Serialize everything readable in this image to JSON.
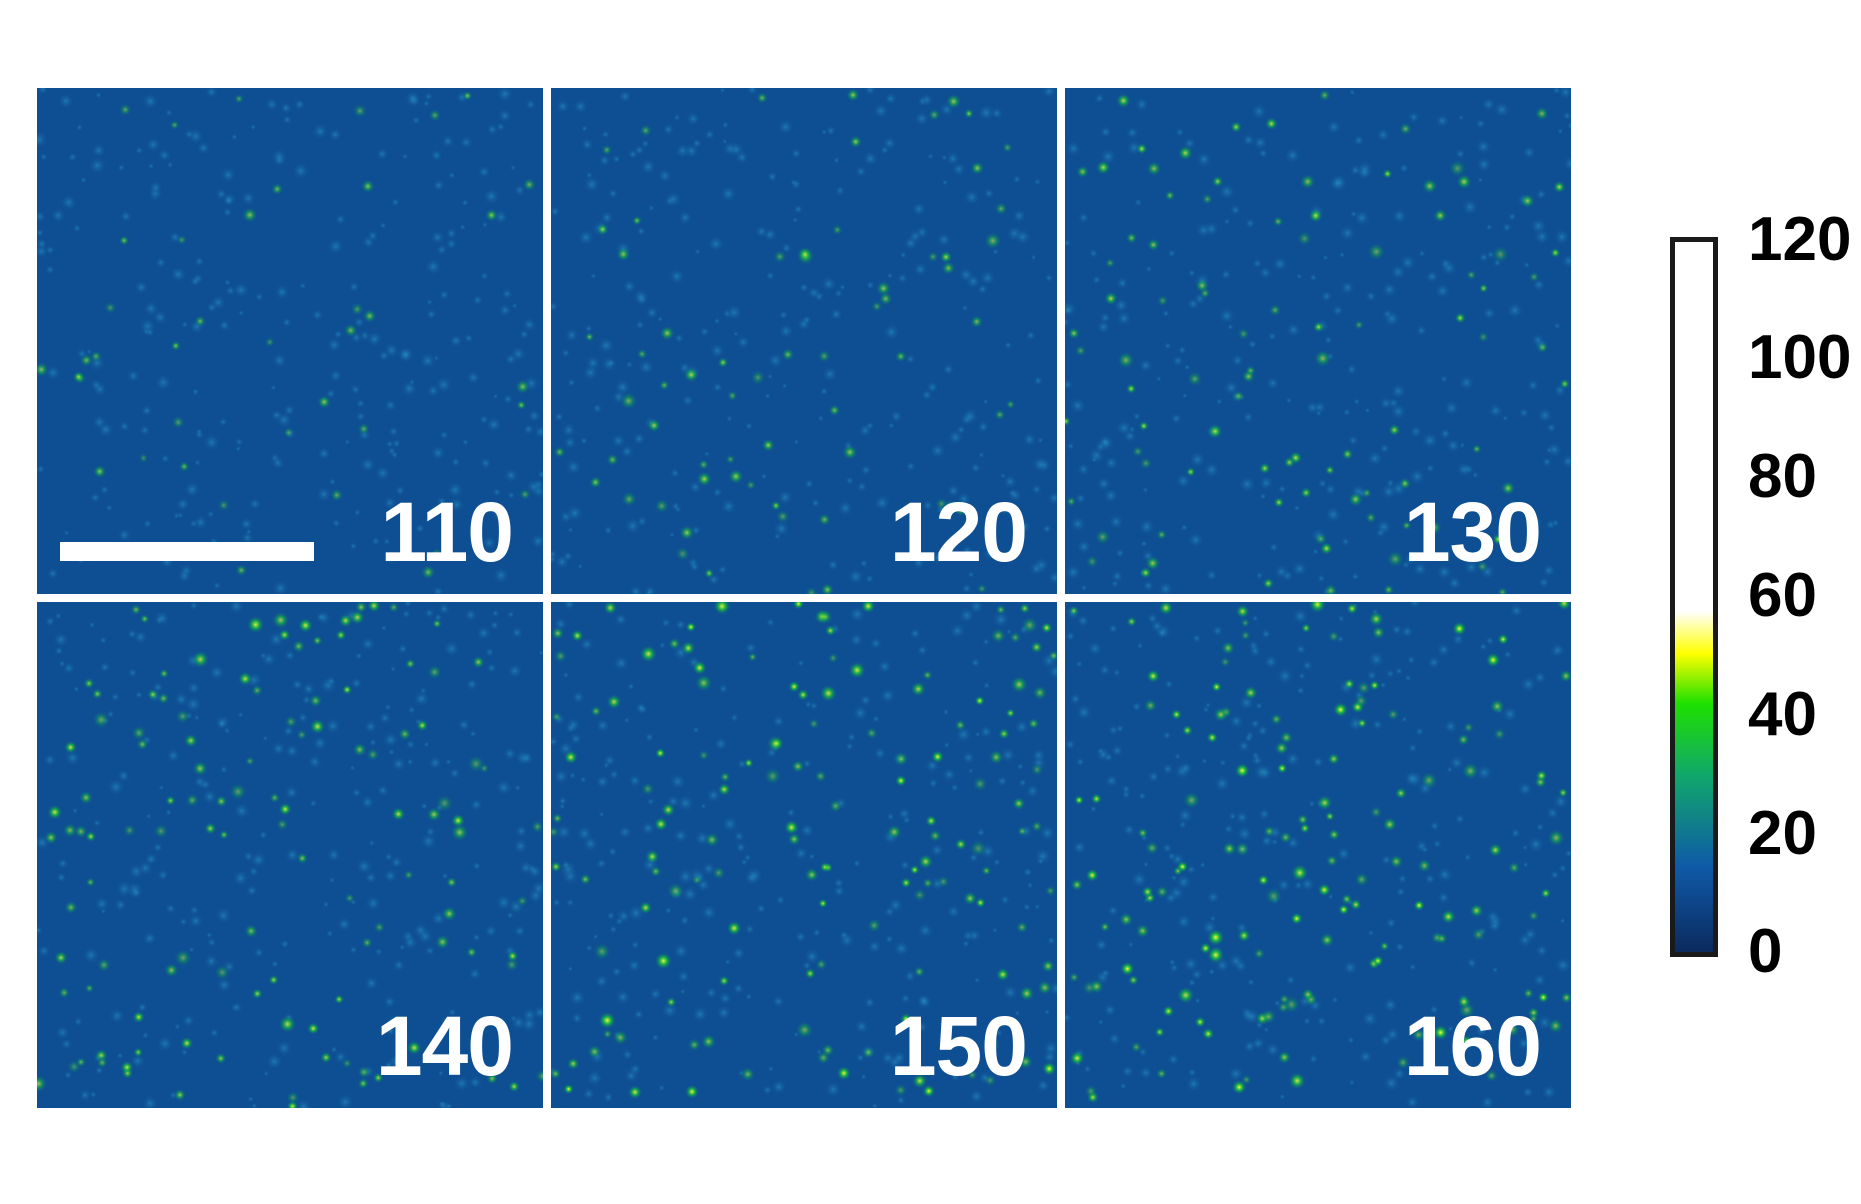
{
  "panels": [
    {
      "label": "110",
      "intensity": 0.15
    },
    {
      "label": "120",
      "intensity": 0.35
    },
    {
      "label": "130",
      "intensity": 0.55
    },
    {
      "label": "140",
      "intensity": 0.75
    },
    {
      "label": "150",
      "intensity": 0.92
    },
    {
      "label": "160",
      "intensity": 1.0
    }
  ],
  "colorbar": {
    "ticks": [
      "0",
      "20",
      "40",
      "60",
      "80",
      "100",
      "120"
    ],
    "colormap": [
      "#0b2a5e",
      "#0f5aa8",
      "#10a86a",
      "#1ee000",
      "#ffff00",
      "#ffffff",
      "#ffffff"
    ]
  },
  "colors": {
    "background": "#0e4f93",
    "spot_mid": "#19c23a",
    "spot_high": "#f4ff3a"
  }
}
